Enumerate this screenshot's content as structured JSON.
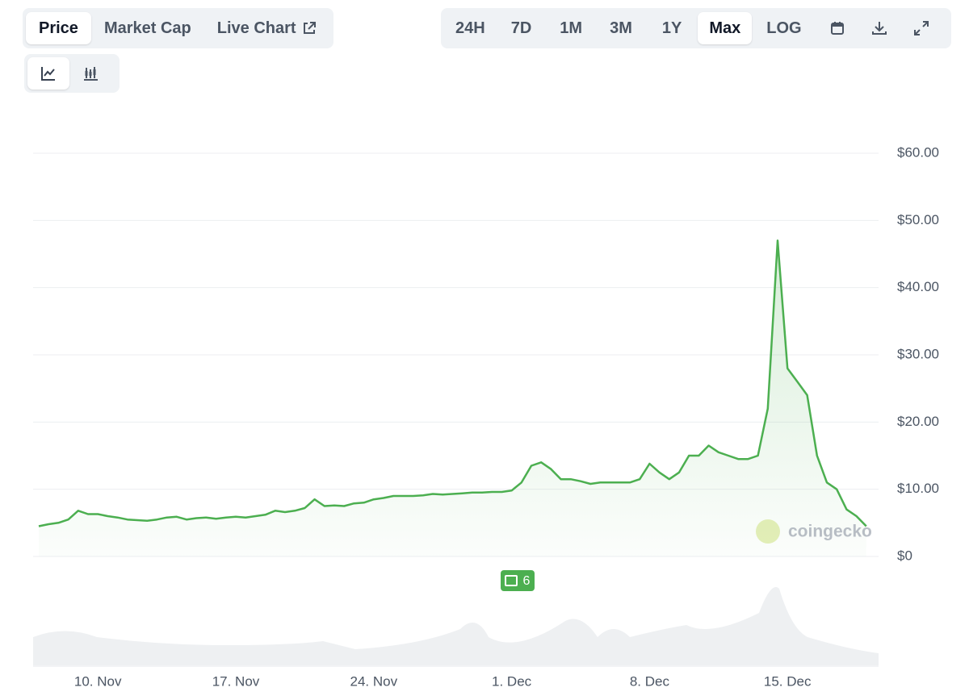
{
  "tabs": [
    "Price",
    "Market Cap",
    "Live Chart"
  ],
  "ranges": [
    "24H",
    "7D",
    "1M",
    "3M",
    "1Y",
    "Max",
    "LOG"
  ],
  "news_badge": "6",
  "watermark": "coingecko",
  "chart_data": {
    "type": "line",
    "categories": [
      null,
      null,
      null,
      null,
      null,
      null,
      "10. Nov",
      null,
      null,
      null,
      null,
      null,
      null,
      null,
      null,
      null,
      null,
      null,
      null,
      null,
      "17. Nov",
      null,
      null,
      null,
      null,
      null,
      null,
      null,
      null,
      null,
      null,
      null,
      null,
      null,
      "24. Nov",
      null,
      null,
      null,
      null,
      null,
      null,
      null,
      null,
      null,
      null,
      null,
      null,
      null,
      "1. Dec",
      null,
      null,
      null,
      null,
      null,
      null,
      null,
      null,
      null,
      null,
      null,
      null,
      null,
      "8. Dec",
      null,
      null,
      null,
      null,
      null,
      null,
      null,
      null,
      null,
      null,
      null,
      null,
      null,
      "15. Dec",
      null,
      null,
      null,
      null,
      null,
      null,
      null,
      null
    ],
    "series": [
      {
        "name": "Price",
        "color": "#4caf50",
        "values": [
          4.5,
          4.8,
          5,
          5.5,
          6.8,
          6.3,
          6.3,
          6,
          5.8,
          5.5,
          5.4,
          5.3,
          5.5,
          5.8,
          5.9,
          5.5,
          5.7,
          5.8,
          5.6,
          5.8,
          5.9,
          5.8,
          6,
          6.2,
          6.8,
          6.6,
          6.8,
          7.2,
          8.5,
          7.5,
          7.6,
          7.5,
          7.9,
          8,
          8.5,
          8.7,
          9,
          9,
          9,
          9.1,
          9.3,
          9.2,
          9.3,
          9.4,
          9.5,
          9.5,
          9.6,
          9.6,
          9.8,
          11,
          13.5,
          14,
          13,
          11.5,
          11.5,
          11.2,
          10.8,
          11,
          11,
          11,
          11,
          11.5,
          13.8,
          12.5,
          11.5,
          12.5,
          15,
          15,
          16.5,
          15.5,
          15,
          14.5,
          14.5,
          15,
          22,
          47,
          28,
          26,
          24,
          15,
          11,
          10,
          7,
          6,
          4.5
        ]
      }
    ],
    "ylim": [
      0,
      60
    ],
    "yticks": [
      {
        "value": 0,
        "label": "$0"
      },
      {
        "value": 10,
        "label": "$10.00"
      },
      {
        "value": 20,
        "label": "$20.00"
      },
      {
        "value": 30,
        "label": "$30.00"
      },
      {
        "value": 40,
        "label": "$40.00"
      },
      {
        "value": 50,
        "label": "$50.00"
      },
      {
        "value": 60,
        "label": "$60.00"
      }
    ],
    "grid": true
  }
}
